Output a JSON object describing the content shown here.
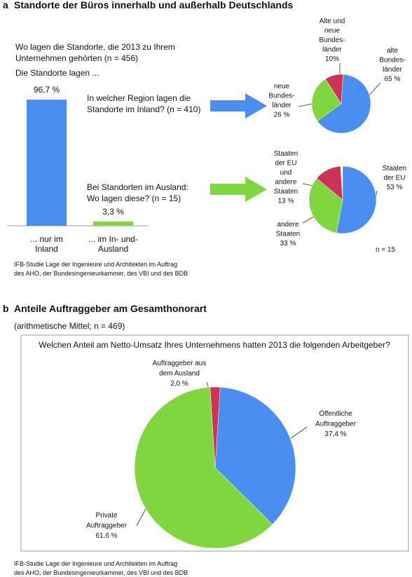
{
  "section_a": {
    "label": "a",
    "title": "Standorte der Büros innerhalb und außerhalb Deutschlands",
    "source": "IFB-Studie Lage der Ingenieure und Architekten im Auftrag\ndes AHO, der Bundesingenieurkammer, des VBI und des BDB"
  },
  "section_b": {
    "label": "b",
    "title": "Anteile Auftraggeber am Gesamthonorart",
    "subtitle": "(arithmetische Mittel; n = 469)",
    "source": "IFB-Studie Lage der Ingenieure und Architekten im Auftrag\ndes AHO, der Bundesingenieurkammer, des VBI und des BDB"
  },
  "chart_data": [
    {
      "type": "bar",
      "title": "Wo lagen die Standorte, die 2013 zu Ihrem\nUnternehmen gehörten (n = 456)",
      "subtitle": "Die Standorte lagen ...",
      "categories": [
        "... nur im\nInland",
        "...  im In- und-\nAusland"
      ],
      "values": [
        96.7,
        3.3
      ],
      "value_labels": [
        "96,7 %",
        "3,3 %"
      ],
      "colors": [
        "#4a8ef2",
        "#80d63f"
      ]
    },
    {
      "type": "pie",
      "title": "In welcher Region lagen die\nStandorte im Inland? (n = 410)",
      "categories": [
        "alte\nBundes-\nländer",
        "neue\nBundes-\nländer",
        "Alte und\nneue\nBundes-\nländer"
      ],
      "values": [
        65,
        26,
        10
      ],
      "value_labels": [
        "65 %",
        "26 %",
        "10%"
      ],
      "colors": [
        "#4a8ef2",
        "#80d63f",
        "#cc3355"
      ]
    },
    {
      "type": "pie",
      "title": "Bei Standorten im Ausland:\nWo lagen diese? (n = 15)",
      "note": "n = 15",
      "categories": [
        "Staaten\nder EU",
        "andere\nStaaten",
        "Staaten\nder EU\nund\nandere\nStaaten"
      ],
      "values": [
        53,
        33,
        13
      ],
      "value_labels": [
        "53 %",
        "33 %",
        "13 %"
      ],
      "colors": [
        "#4a8ef2",
        "#80d63f",
        "#cc3355"
      ]
    },
    {
      "type": "pie",
      "title": "Welchen Anteil am Netto-Umsatz Ihres Unternehmens hatten 2013 die folgenden Arbeitgeber?",
      "categories": [
        "Öffentliche\nAuftraggeber",
        "Private\nAuftraggeber",
        "Auftraggeber aus\ndem Ausland"
      ],
      "values": [
        37.4,
        61.6,
        2.0
      ],
      "value_labels": [
        "37,4 %",
        "61,6 %",
        "2,0 %"
      ],
      "colors": [
        "#4a8ef2",
        "#80d63f",
        "#cc3355"
      ]
    }
  ]
}
